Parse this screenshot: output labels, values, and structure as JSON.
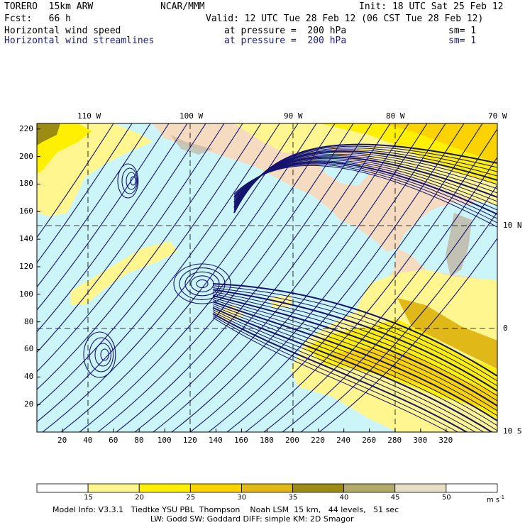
{
  "header": {
    "model": "TORERO  15km ARW",
    "org": "NCAR/MMM",
    "init": "Init: 18 UTC Sat 25 Feb 12",
    "fcst": "Fcst:   66 h",
    "valid": "Valid: 12 UTC Tue 28 Feb 12 (06 CST Tue 28 Feb 12)",
    "field1": {
      "name": "Horizontal wind speed",
      "level": "at pressure =  200 hPa",
      "sm": "sm= 1"
    },
    "field2": {
      "name": "Horizontal wind streamlines",
      "level": "at pressure =  200 hPa",
      "sm": "sm= 1"
    }
  },
  "map": {
    "lon_labels": [
      "110 W",
      "100 W",
      "90 W",
      "80 W",
      "70 W"
    ],
    "lat_labels": [
      "10 N",
      "0",
      "10 S"
    ],
    "x_ticks": [
      "20",
      "40",
      "60",
      "80",
      "100",
      "120",
      "140",
      "160",
      "180",
      "200",
      "220",
      "240",
      "260",
      "280",
      "300",
      "320"
    ],
    "y_ticks": [
      "20",
      "40",
      "60",
      "80",
      "100",
      "120",
      "140",
      "160",
      "180",
      "200",
      "220"
    ],
    "colors": {
      "ocean": "#ccf5fa",
      "land": "#f5dcc0",
      "terrain": "#bfb5a3",
      "stream": "#14146e"
    }
  },
  "colorbar": {
    "levels": [
      "15",
      "20",
      "25",
      "30",
      "35",
      "40",
      "45",
      "50"
    ],
    "unit": "m s",
    "unit_exp": "-1",
    "colors": [
      "#ffffff",
      "#fff68f",
      "#fff000",
      "#fbd400",
      "#e0b818",
      "#9c8c14",
      "#b4ab6a",
      "#e4e0c8",
      "#ffffff"
    ]
  },
  "footer": {
    "line1": "Model Info: V3.3.1   Tiedtke YSU PBL  Thompson    Noah LSM  15 km,   44 levels,   51 sec",
    "line2": "LW: Godd SW: Goddard DIFF: simple KM: 2D Smagor"
  }
}
